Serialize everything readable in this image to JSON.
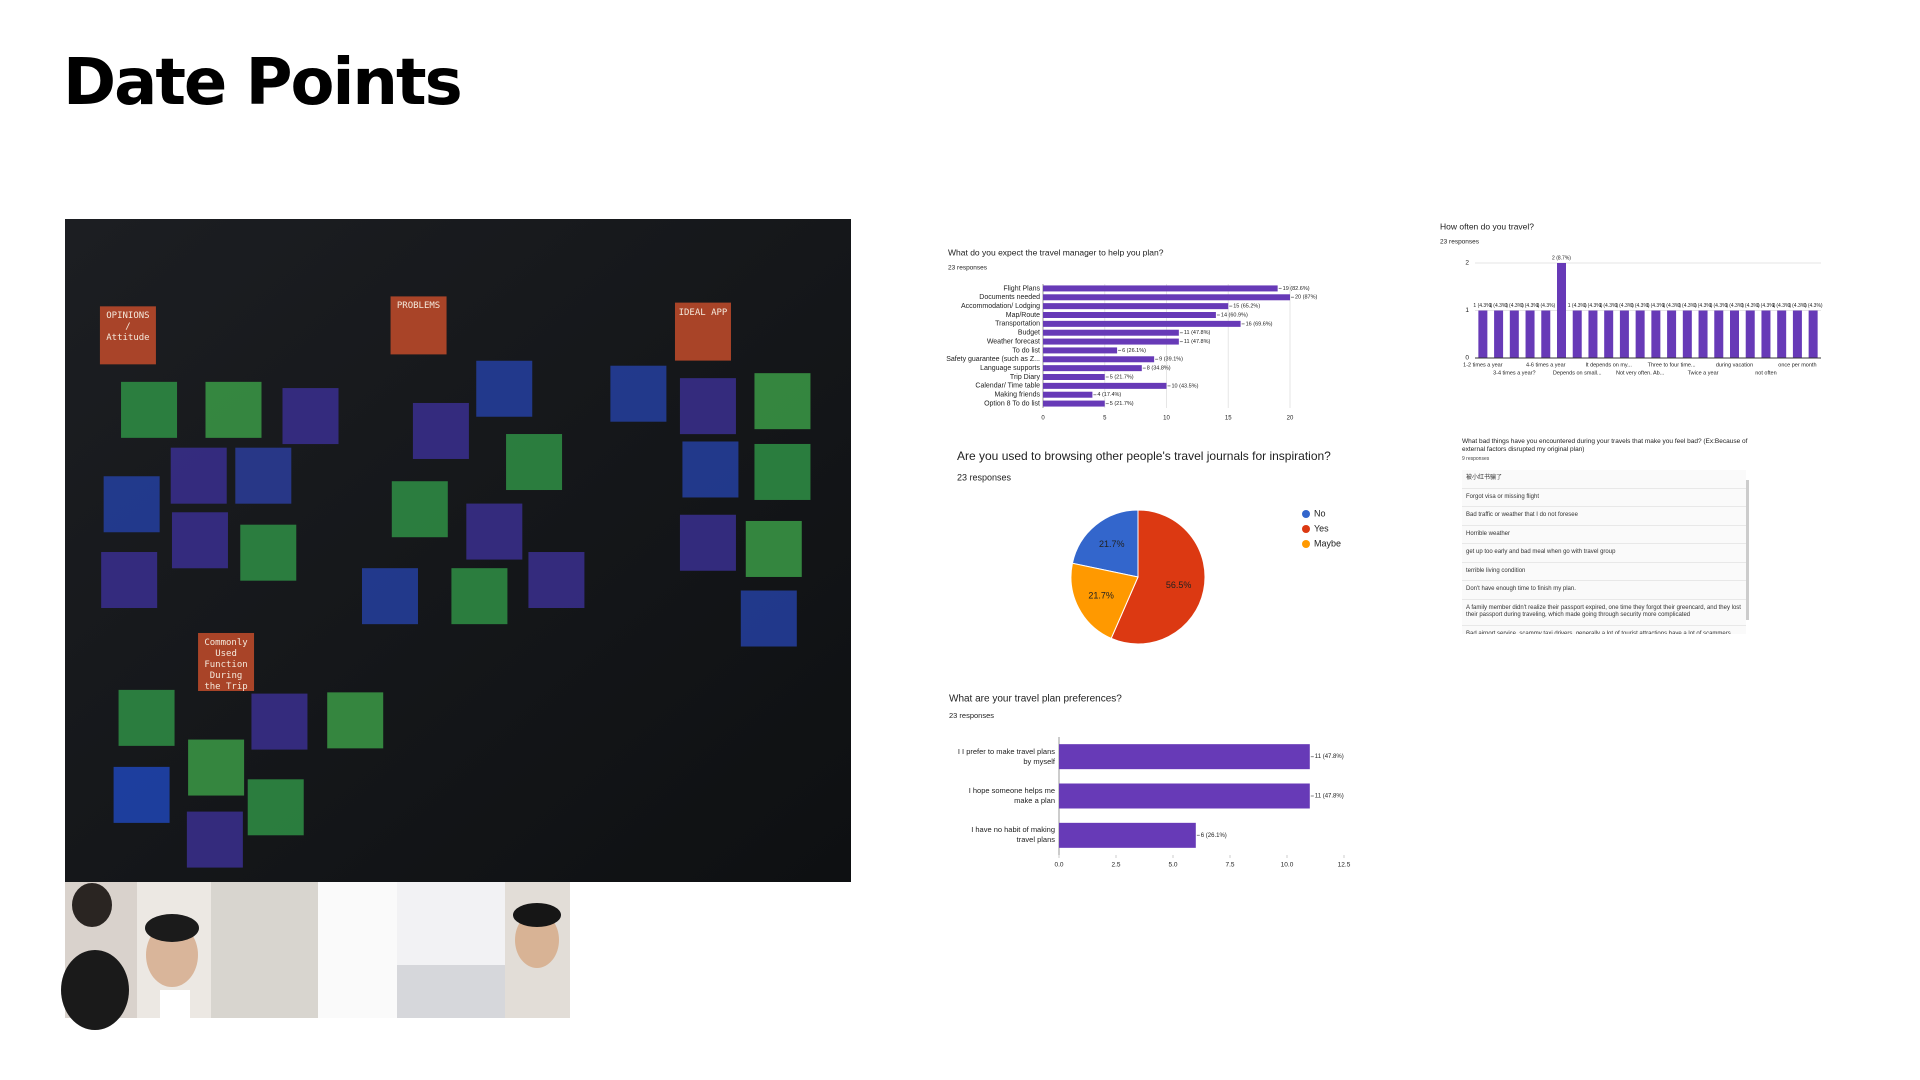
{
  "title": "Date Points",
  "photo": {
    "labels": [
      "OPINIONS / Attitude",
      "PROBLEMS",
      "IDEAL APP",
      "Commonly Used Function During the Trip"
    ]
  },
  "chart_data": [
    {
      "type": "hbar",
      "title": "What do you expect the travel manager to help you plan?",
      "subtitle": "23 responses",
      "categories": [
        "Flight Plans",
        "Documents needed",
        "Accommodation/ Lodging",
        "Map/Route",
        "Transportation",
        "Budget",
        "Weather forecast",
        "To do list",
        "Safety guarantee (such as Z...",
        "Language supports",
        "Trip Diary",
        "Calendar/ Time table",
        "Making friends",
        "Option 8 To do list"
      ],
      "values": [
        19,
        20,
        15,
        14,
        16,
        11,
        11,
        6,
        9,
        8,
        5,
        10,
        4,
        5
      ],
      "value_labels": [
        "19 (82.6%)",
        "20 (87%)",
        "15 (65.2%)",
        "14 (60.9%)",
        "16 (69.6%)",
        "11 (47.8%)",
        "11 (47.8%)",
        "6 (26.1%)",
        "9 (39.1%)",
        "8 (34.8%)",
        "5 (21.7%)",
        "10 (43.5%)",
        "4 (17.4%)",
        "5 (21.7%)"
      ],
      "color": "#673ab7",
      "xlim": [
        0,
        20
      ],
      "xticks": [
        0,
        5,
        10,
        15,
        20
      ],
      "grid": true
    },
    {
      "type": "column",
      "title": "How often do you travel?",
      "subtitle": "23 responses",
      "categories": [
        "1-2 times a year",
        null,
        "3-4 times a year?",
        null,
        "4-6 times a year",
        null,
        "Depends on small...",
        null,
        "It depends on my...",
        null,
        "Not very often. Ab...",
        null,
        "Three to four time...",
        null,
        "Twice a year",
        null,
        "during vacation",
        null,
        "not often",
        null,
        "once per month",
        null
      ],
      "values": [
        1,
        1,
        1,
        1,
        1,
        2,
        1,
        1,
        1,
        1,
        1,
        1,
        1,
        1,
        1,
        1,
        1,
        1,
        1,
        1,
        1,
        1
      ],
      "value_labels": [
        "1 (4.3%)",
        "1 (4.3%)",
        "1 (4.3%)",
        "1 (4.3%)",
        "1 (4.3%)",
        "2 (8.7%)",
        "1 (4.3%)",
        "1 (4.3%)",
        "1 (4.3%)",
        "1 (4.3%)",
        "1 (4.3%)",
        "1 (4.3%)",
        "1 (4.3%)",
        "1 (4.3%)",
        "1 (4.3%)",
        "1 (4.3%)",
        "1 (4.3%)",
        "1 (4.3%)",
        "1 (4.3%)",
        "1 (4.3%)",
        "1 (4.3%)",
        "1 (4.3%)"
      ],
      "color": "#673ab7",
      "ylim": [
        0,
        2
      ],
      "yticks": [
        0,
        1,
        2
      ],
      "grid": true
    },
    {
      "type": "pie",
      "title": "Are you used to browsing other people's travel journals for inspiration?",
      "subtitle": "23 responses",
      "categories": [
        "No",
        "Yes",
        "Maybe"
      ],
      "values": [
        21.7,
        56.5,
        21.7
      ],
      "value_labels": [
        "21.7%",
        "56.5%",
        "21.7%"
      ],
      "colors": [
        "#3366cc",
        "#dc3912",
        "#ff9900"
      ],
      "legend": "right"
    },
    {
      "type": "hbar",
      "title": "What are your travel plan preferences?",
      "subtitle": "23 responses",
      "categories": [
        "I I prefer to make travel plans by myself",
        "I hope someone helps me make a plan",
        "I have no habit of making travel plans"
      ],
      "values": [
        11,
        11,
        6
      ],
      "value_labels": [
        "11 (47.8%)",
        "11 (47.8%)",
        "6 (26.1%)"
      ],
      "color": "#673ab7",
      "xlim": [
        0,
        12.5
      ],
      "xticks": [
        {
          "value": 0,
          "label": "0.0"
        },
        2.5,
        {
          "value": 5,
          "label": "5.0"
        },
        7.5,
        {
          "value": 10,
          "label": "10.0"
        },
        12.5
      ],
      "grid": false
    }
  ],
  "responses": {
    "question": "What bad things have you encountered during your travels that make you feel bad? (Ex:Because of external factors disrupted my original plan)",
    "count": "9 responses",
    "items": [
      "被小红书骗了",
      "Forgot visa or missing flight",
      "Bad traffic or weather that I do not foresee",
      "Horrible weather",
      "get up too early and bad meal when go with travel group",
      "terrible living condition",
      "Don't have enough time to finish my plan.",
      "A family member didn't realize their passport expired, one time they forgot their greencard, and they lost their passport during traveling, which made going through security more complicated",
      "Bad airport service, scammy taxi drivers, generally a lot of tourist attractions have a lot of scammers"
    ]
  }
}
